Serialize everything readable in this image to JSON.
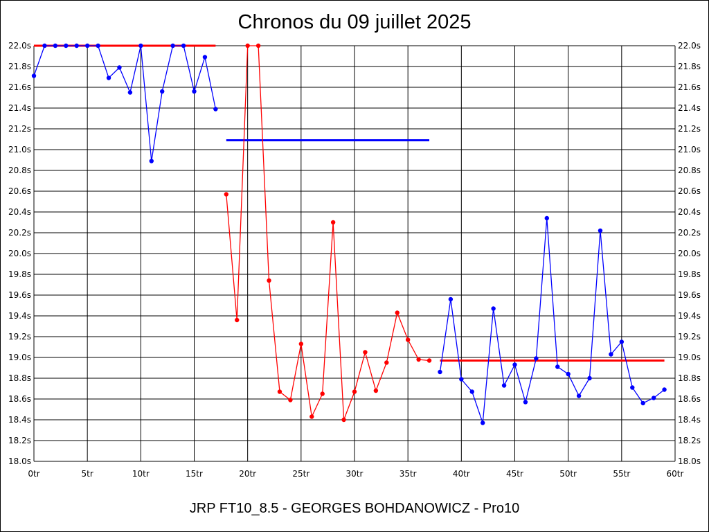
{
  "chart_data": {
    "type": "line",
    "title": "Chronos du 09 juillet 2025",
    "subtitle": "JRP FT10_8.5 - GEORGES BOHDANOWICZ - Pro10",
    "xlim": [
      0,
      60
    ],
    "ylim": [
      18.0,
      22.0
    ],
    "x_ticks": [
      "0tr",
      "5tr",
      "10tr",
      "15tr",
      "20tr",
      "25tr",
      "30tr",
      "35tr",
      "40tr",
      "45tr",
      "50tr",
      "55tr",
      "60tr"
    ],
    "y_ticks": [
      "18.0s",
      "18.2s",
      "18.4s",
      "18.6s",
      "18.8s",
      "19.0s",
      "19.2s",
      "19.4s",
      "19.6s",
      "19.8s",
      "20.0s",
      "20.2s",
      "20.4s",
      "20.6s",
      "20.8s",
      "21.0s",
      "21.2s",
      "21.4s",
      "21.6s",
      "21.8s",
      "22.0s"
    ],
    "grid": true,
    "series": [
      {
        "color": "#0000ff",
        "points": [
          [
            0,
            21.71
          ],
          [
            1,
            22.0
          ],
          [
            2,
            22.0
          ],
          [
            3,
            22.0
          ],
          [
            4,
            22.0
          ],
          [
            5,
            22.0
          ],
          [
            6,
            22.0
          ],
          [
            7,
            21.69
          ],
          [
            8,
            21.79
          ],
          [
            9,
            21.55
          ],
          [
            10,
            22.0
          ],
          [
            11,
            20.89
          ],
          [
            12,
            21.56
          ],
          [
            13,
            22.0
          ],
          [
            14,
            22.0
          ],
          [
            15,
            21.56
          ],
          [
            16,
            21.89
          ],
          [
            17,
            21.39
          ]
        ]
      },
      {
        "color": "#ff0000",
        "points": [
          [
            18,
            20.57
          ],
          [
            19,
            19.36
          ],
          [
            20,
            22.0
          ],
          [
            21,
            22.0
          ],
          [
            22,
            19.74
          ],
          [
            23,
            18.67
          ],
          [
            24,
            18.59
          ],
          [
            25,
            19.13
          ],
          [
            26,
            18.43
          ],
          [
            27,
            18.65
          ],
          [
            28,
            20.3
          ],
          [
            29,
            18.4
          ],
          [
            30,
            18.67
          ],
          [
            31,
            19.05
          ],
          [
            32,
            18.68
          ],
          [
            33,
            18.95
          ],
          [
            34,
            19.43
          ],
          [
            35,
            19.17
          ],
          [
            36,
            18.98
          ],
          [
            37,
            18.97
          ]
        ]
      },
      {
        "color": "#0000ff",
        "points": [
          [
            38,
            18.86
          ],
          [
            39,
            19.56
          ],
          [
            40,
            18.79
          ],
          [
            41,
            18.67
          ],
          [
            42,
            18.37
          ],
          [
            43,
            19.47
          ],
          [
            44,
            18.73
          ],
          [
            45,
            18.93
          ],
          [
            46,
            18.57
          ],
          [
            47,
            18.99
          ],
          [
            48,
            20.34
          ],
          [
            49,
            18.91
          ],
          [
            50,
            18.84
          ],
          [
            51,
            18.63
          ],
          [
            52,
            18.8
          ],
          [
            53,
            20.22
          ],
          [
            54,
            19.03
          ],
          [
            55,
            19.15
          ],
          [
            56,
            18.71
          ],
          [
            57,
            18.56
          ],
          [
            58,
            18.61
          ],
          [
            59,
            18.69
          ]
        ]
      }
    ],
    "averages": [
      {
        "color": "#ff0000",
        "x": [
          0,
          17
        ],
        "y": 22.0
      },
      {
        "color": "#0000ff",
        "x": [
          18,
          37
        ],
        "y": 21.09
      },
      {
        "color": "#ff0000",
        "x": [
          38,
          59
        ],
        "y": 18.97
      }
    ]
  }
}
